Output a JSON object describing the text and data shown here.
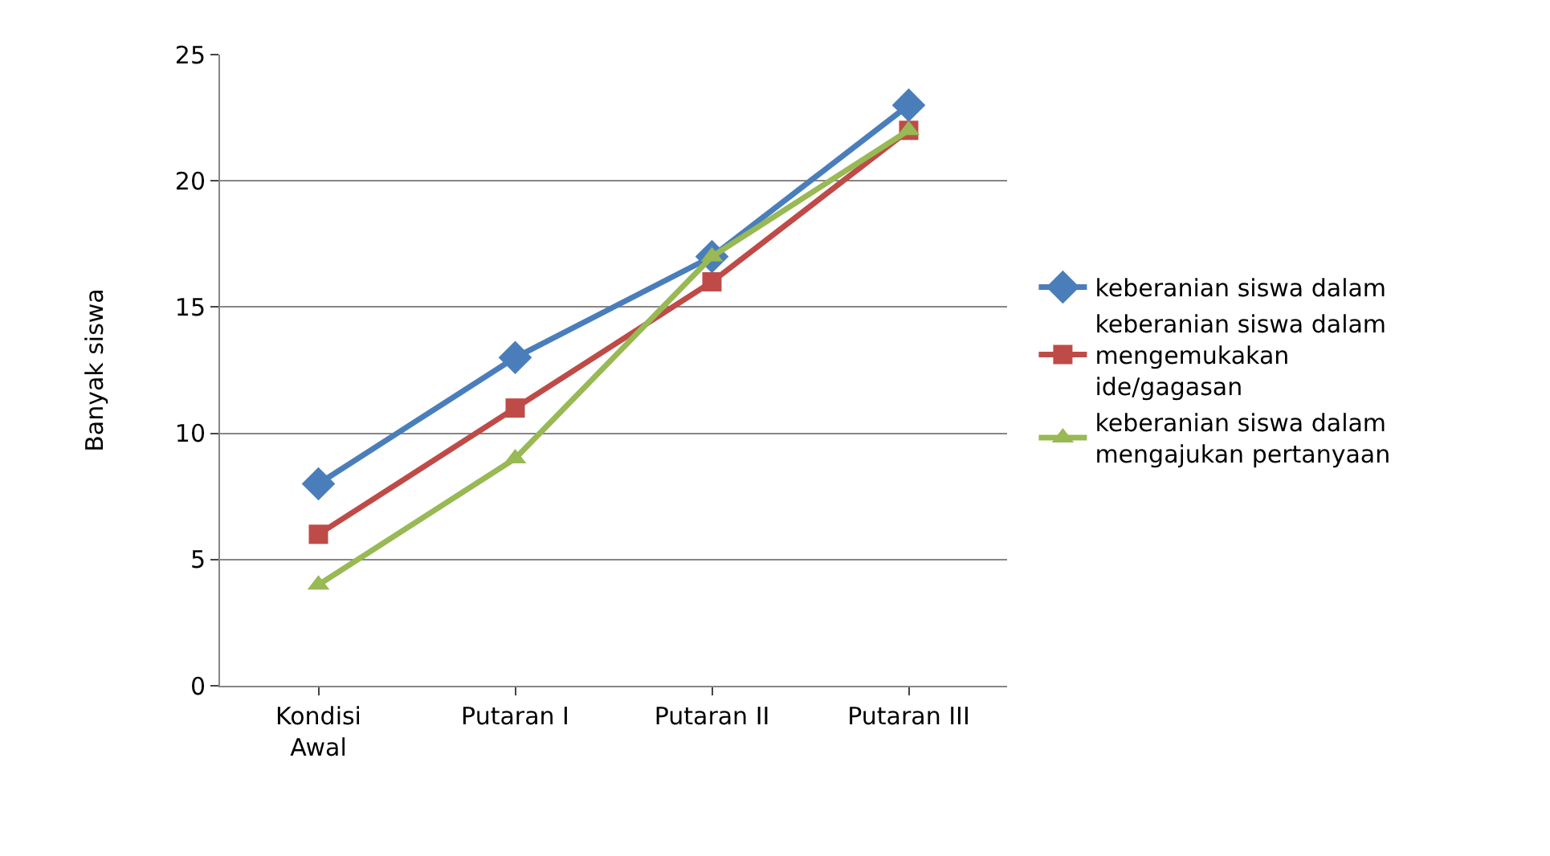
{
  "chart_data": {
    "type": "line",
    "ylabel": "Banyak siswa",
    "categories": [
      "Kondisi Awal",
      "Putaran I",
      "Putaran II",
      "Putaran III"
    ],
    "series": [
      {
        "name": "keberanian siswa dalam",
        "color": "#4a7ebb",
        "marker": "diamond",
        "values": [
          8,
          13,
          17,
          23
        ]
      },
      {
        "name": "keberanian siswa dalam mengemukakan ide/gagasan",
        "color": "#be4b48",
        "marker": "square",
        "values": [
          6,
          11,
          16,
          22
        ]
      },
      {
        "name": "keberanian siswa dalam mengajukan pertanyaan",
        "color": "#98b954",
        "marker": "triangle",
        "values": [
          4,
          9,
          17,
          22
        ]
      }
    ],
    "ylim": [
      0,
      25
    ],
    "yticks": [
      0,
      5,
      10,
      15,
      20,
      25
    ],
    "grid": "y",
    "legend": "right",
    "line_style": "solid"
  }
}
